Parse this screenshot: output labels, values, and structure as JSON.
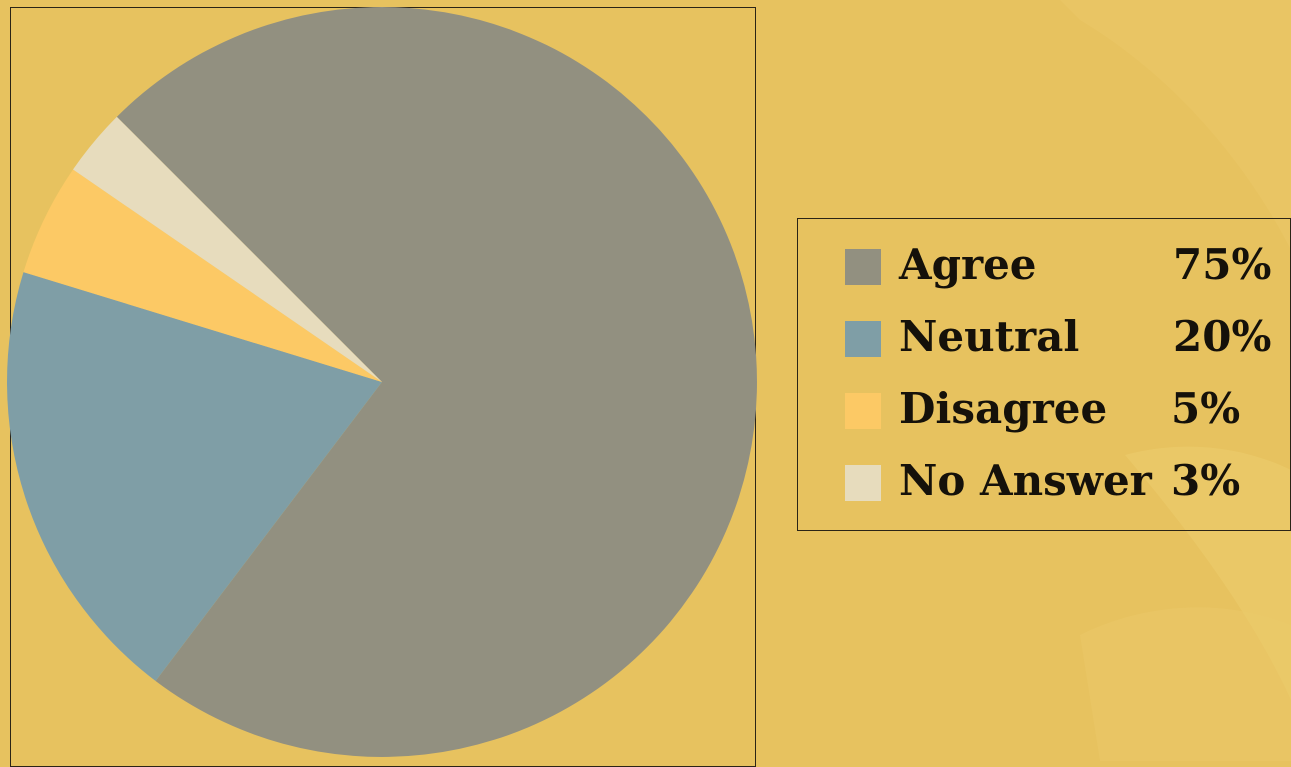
{
  "chart_data": {
    "type": "pie",
    "title": "",
    "slices": [
      {
        "label": "Agree",
        "value": 75,
        "value_text": "75%",
        "color": "#929080"
      },
      {
        "label": "Neutral",
        "value": 20,
        "value_text": "20%",
        "color": "#7f9ea6"
      },
      {
        "label": "Disagree",
        "value": 5,
        "value_text": "5%",
        "color": "#fcc965"
      },
      {
        "label": "No Answer",
        "value": 3,
        "value_text": "3%",
        "color": "#e7dcbd"
      }
    ],
    "legend_position": "right",
    "grid": false
  },
  "theme": {
    "background": "#e7c25f",
    "border": "#2b2416"
  }
}
